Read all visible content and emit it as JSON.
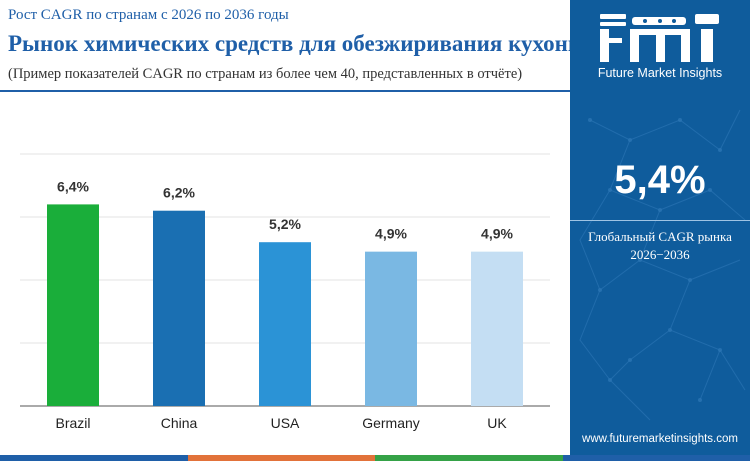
{
  "header": {
    "subtitle": "Рост CAGR по странам с 2026 по 2036 годы",
    "title": "Рынок химических средств для обезжиривания кухонь",
    "note": "(Пример показателей CAGR по странам из более чем 40, представленных в отчёте)"
  },
  "sidebar": {
    "logo_text": "fmi",
    "brand": "Future Market Insights",
    "global_cagr_value": "5,4%",
    "global_cagr_label_line1": "Глобальный CAGR рынка",
    "global_cagr_label_line2": "2026−2036",
    "website": "www.futuremarketinsights.com"
  },
  "colors": {
    "title": "#1f5fa8",
    "sidebar_bg": "#0f5c9c",
    "bar_colors": [
      "#1aae3a",
      "#1a6fb2",
      "#2b93d6",
      "#7ab8e3",
      "#c4def3"
    ],
    "bottom_strip": [
      "#1f5fa8",
      "#e2723a",
      "#35a247",
      "#1f5fa8"
    ]
  },
  "chart_data": {
    "type": "bar",
    "title": "Рынок химических средств для обезжиривания кухонь",
    "categories": [
      "Brazil",
      "China",
      "USA",
      "Germany",
      "UK"
    ],
    "values": [
      6.4,
      6.2,
      5.2,
      4.9,
      4.9
    ],
    "value_labels": [
      "6,4%",
      "6,2%",
      "5,2%",
      "4,9%",
      "4,9%"
    ],
    "ylim": [
      0,
      8
    ],
    "grid": true,
    "xlabel": "",
    "ylabel": ""
  }
}
